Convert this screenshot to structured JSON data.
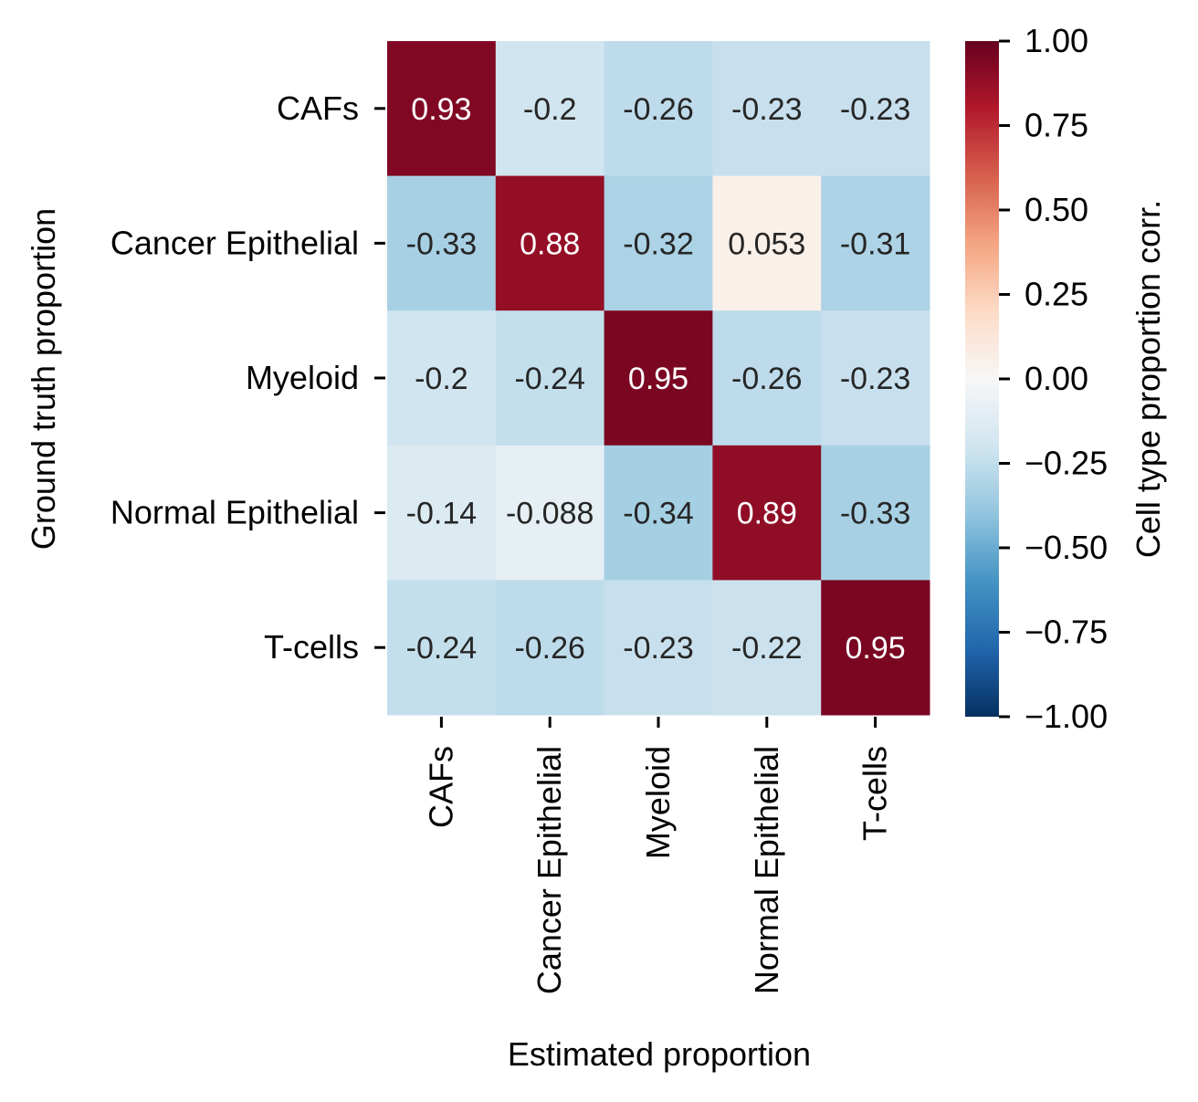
{
  "chart_data": {
    "type": "heatmap",
    "rows": [
      "CAFs",
      "Cancer Epithelial",
      "Myeloid",
      "Normal Epithelial",
      "T-cells"
    ],
    "columns": [
      "CAFs",
      "Cancer Epithelial",
      "Myeloid",
      "Normal Epithelial",
      "T-cells"
    ],
    "values": [
      [
        0.93,
        -0.2,
        -0.26,
        -0.23,
        -0.23
      ],
      [
        -0.33,
        0.88,
        -0.32,
        0.053,
        -0.31
      ],
      [
        -0.2,
        -0.24,
        0.95,
        -0.26,
        -0.23
      ],
      [
        -0.14,
        -0.088,
        -0.34,
        0.89,
        -0.33
      ],
      [
        -0.24,
        -0.26,
        -0.23,
        -0.22,
        0.95
      ]
    ],
    "cell_labels": [
      [
        "0.93",
        "-0.2",
        "-0.26",
        "-0.23",
        "-0.23"
      ],
      [
        "-0.33",
        "0.88",
        "-0.32",
        "0.053",
        "-0.31"
      ],
      [
        "-0.2",
        "-0.24",
        "0.95",
        "-0.26",
        "-0.23"
      ],
      [
        "-0.14",
        "-0.088",
        "-0.34",
        "0.89",
        "-0.33"
      ],
      [
        "-0.24",
        "-0.26",
        "-0.23",
        "-0.22",
        "0.95"
      ]
    ],
    "xlabel": "Estimated proportion",
    "ylabel": "Ground truth proportion",
    "colorbar": {
      "label": "Cell type proportion corr.",
      "range": [
        -1.0,
        1.0
      ],
      "ticks": [
        1.0,
        0.75,
        0.5,
        0.25,
        0.0,
        -0.25,
        -0.5,
        -0.75,
        -1.0
      ],
      "tick_labels": [
        "1.00",
        "0.75",
        "0.50",
        "0.25",
        "0.00",
        "−0.25",
        "−0.50",
        "−0.75",
        "−1.00"
      ],
      "colormap": "RdBu_r"
    },
    "grid": false
  }
}
